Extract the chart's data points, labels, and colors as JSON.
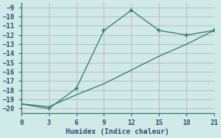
{
  "line1_x": [
    0,
    3,
    6,
    9,
    12,
    15,
    18,
    21
  ],
  "line1_y": [
    -19.5,
    -20.0,
    -17.8,
    -11.5,
    -9.3,
    -11.5,
    -12.0,
    -11.5
  ],
  "line2_x": [
    0,
    3,
    6,
    9,
    12,
    15,
    18,
    21
  ],
  "line2_y": [
    -19.5,
    -19.8,
    -18.5,
    -17.3,
    -15.8,
    -14.3,
    -13.0,
    -11.5
  ],
  "line_color": "#2e7d6e",
  "bg_color": "#d0eae8",
  "grid_color": "#c0b8c8",
  "xlabel": "Humidex (Indice chaleur)",
  "xlim": [
    0,
    21
  ],
  "ylim": [
    -20.5,
    -8.5
  ],
  "xticks": [
    0,
    3,
    6,
    9,
    12,
    15,
    18,
    21
  ],
  "yticks": [
    -9,
    -10,
    -11,
    -12,
    -13,
    -14,
    -15,
    -16,
    -17,
    -18,
    -19,
    -20
  ],
  "tick_color": "#2e4e6e",
  "spine_color": "#2e7d6e"
}
